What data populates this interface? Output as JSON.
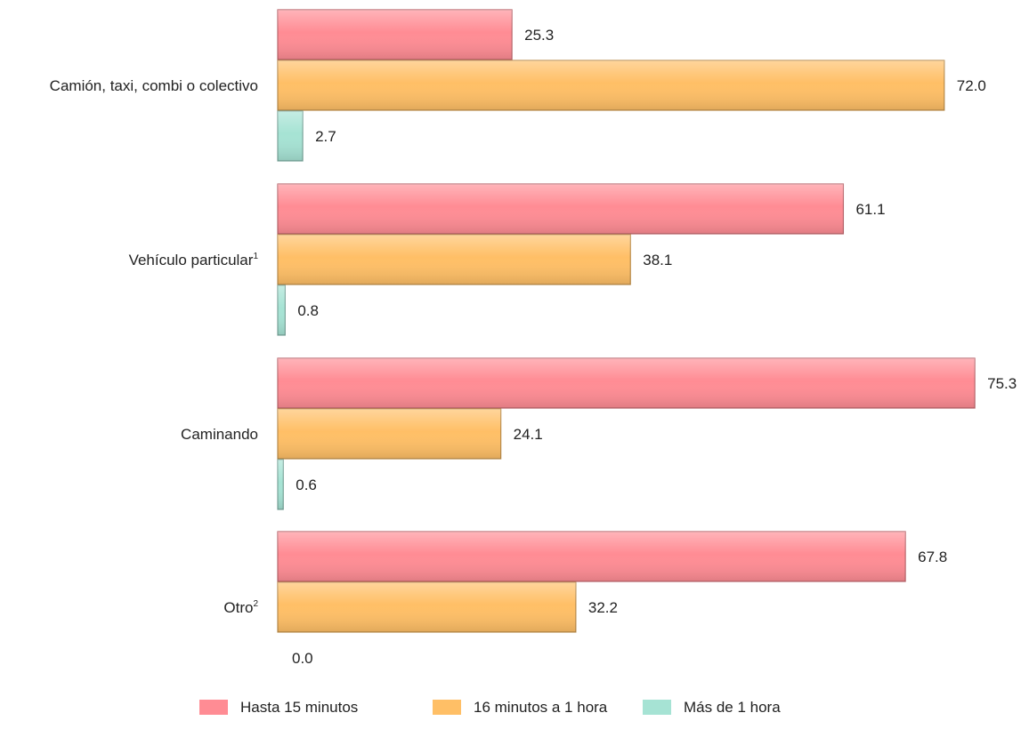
{
  "chart_data": {
    "type": "bar",
    "orientation": "horizontal",
    "categories": [
      {
        "label": "Camión, taxi, combi o colectivo",
        "sup": ""
      },
      {
        "label": "Vehículo particular",
        "sup": "1"
      },
      {
        "label": "Caminando",
        "sup": ""
      },
      {
        "label": "Otro",
        "sup": "2"
      }
    ],
    "series": [
      {
        "name": "Hasta 15 minutos",
        "color": "#FF8C94",
        "values": [
          25.3,
          61.1,
          75.3,
          67.8
        ],
        "labels": [
          "25.3",
          "61.1",
          "75.3",
          "67.8"
        ]
      },
      {
        "name": "16 minutos a 1 hora",
        "color": "#FFBF66",
        "values": [
          72.0,
          38.1,
          24.1,
          32.2
        ],
        "labels": [
          "72.0",
          "38.1",
          "24.1",
          "32.2"
        ]
      },
      {
        "name": "Más de 1 hora",
        "color": "#A6E3D4",
        "values": [
          2.7,
          0.8,
          0.6,
          0.0
        ],
        "labels": [
          "2.7",
          "0.8",
          "0.6",
          "0.0"
        ]
      }
    ],
    "xlim": [
      0,
      80
    ],
    "grid": false,
    "legend_position": "bottom"
  }
}
